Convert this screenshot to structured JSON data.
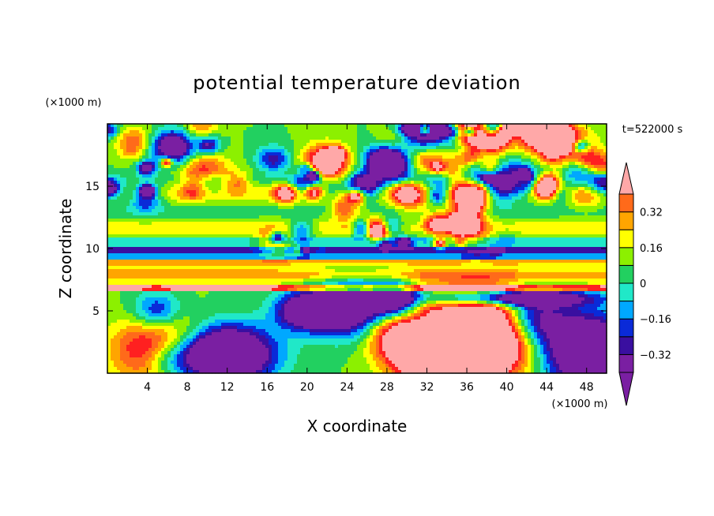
{
  "chart_data": {
    "type": "heatmap",
    "title": "potential temperature deviation",
    "xlabel": "X coordinate",
    "ylabel": "Z coordinate",
    "x_unit": "(×1000 m)",
    "y_unit": "(×1000 m)",
    "time_label": "t=522000 s",
    "xlim": [
      0,
      50
    ],
    "ylim": [
      0,
      20
    ],
    "x_ticks": [
      4,
      8,
      12,
      16,
      20,
      24,
      28,
      32,
      36,
      40,
      44,
      48
    ],
    "y_ticks": [
      5,
      10,
      15
    ],
    "colorbar": {
      "levels": [
        -0.4,
        -0.32,
        -0.24,
        -0.16,
        -0.08,
        0,
        0.08,
        0.16,
        0.24,
        0.32,
        0.4
      ],
      "labels": [
        {
          "value": 0.32,
          "text": "0.32"
        },
        {
          "value": 0.16,
          "text": "0.16"
        },
        {
          "value": 0,
          "text": "0"
        },
        {
          "value": -0.16,
          "text": "−0.16"
        },
        {
          "value": -0.32,
          "text": "−0.32"
        }
      ],
      "colors": [
        "#7a1fa2",
        "#3a0fa0",
        "#0a2ad8",
        "#00a8ff",
        "#20e8c8",
        "#22d060",
        "#8cf000",
        "#ffff00",
        "#ffa500",
        "#ff6a1a",
        "#ff2020"
      ],
      "over_color": "#ffa8a8",
      "under_color": "#7a1fa2"
    },
    "layers": [
      {
        "z_range": [
          0,
          6.5
        ],
        "description_level": "mixed",
        "dominant": [
          0.45,
          -0.45
        ]
      },
      {
        "z_range": [
          6.5,
          9
        ],
        "dominant": [
          0.2,
          0.1
        ]
      },
      {
        "z_range": [
          9,
          10.5
        ],
        "dominant": [
          -0.35,
          -0.2
        ]
      },
      {
        "z_range": [
          10.5,
          16
        ],
        "dominant": [
          0.05,
          0.12
        ]
      },
      {
        "z_range": [
          16,
          20
        ],
        "dominant": [
          0.45,
          -0.45
        ]
      }
    ]
  }
}
